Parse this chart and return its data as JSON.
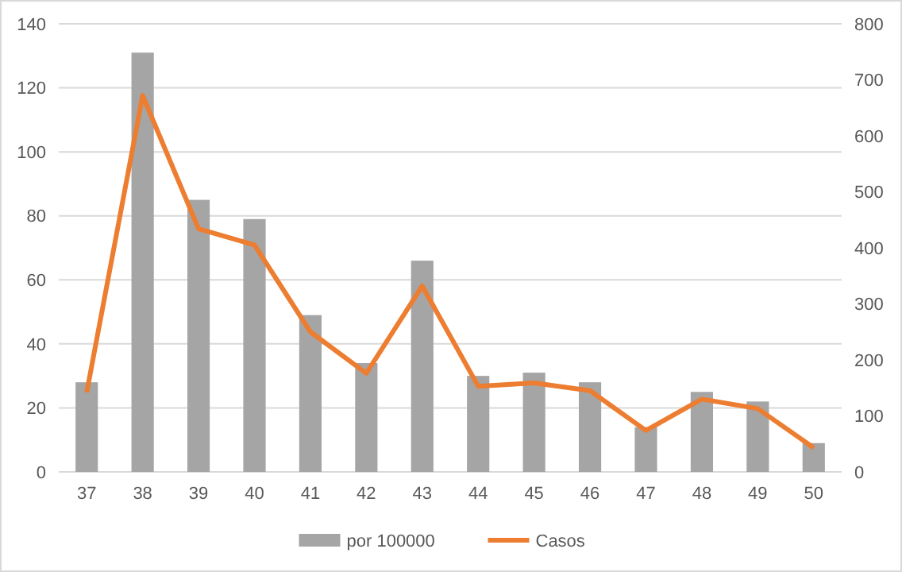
{
  "chart_data": {
    "type": "bar",
    "categories": [
      "37",
      "38",
      "39",
      "40",
      "41",
      "42",
      "43",
      "44",
      "45",
      "46",
      "47",
      "48",
      "49",
      "50"
    ],
    "series": [
      {
        "name": "por 100000",
        "color": "#a5a5a5",
        "values": [
          28,
          131,
          85,
          79,
          49,
          34,
          66,
          30,
          31,
          28,
          14,
          25,
          22,
          9
        ]
      },
      {
        "name": "Casos",
        "type": "line",
        "axis": "y2",
        "color": "#ed7d31",
        "values": [
          142,
          672,
          434,
          405,
          250,
          176,
          332,
          153,
          159,
          145,
          74,
          130,
          113,
          43
        ]
      }
    ],
    "ylim": [
      0,
      140
    ],
    "yticks": [
      0,
      20,
      40,
      60,
      80,
      100,
      120,
      140
    ],
    "y2lim": [
      0,
      800
    ],
    "y2ticks": [
      0,
      100,
      200,
      300,
      400,
      500,
      600,
      700,
      800
    ],
    "grid": "y",
    "legend": "bottom",
    "marker": "none",
    "line_style": "solid"
  }
}
